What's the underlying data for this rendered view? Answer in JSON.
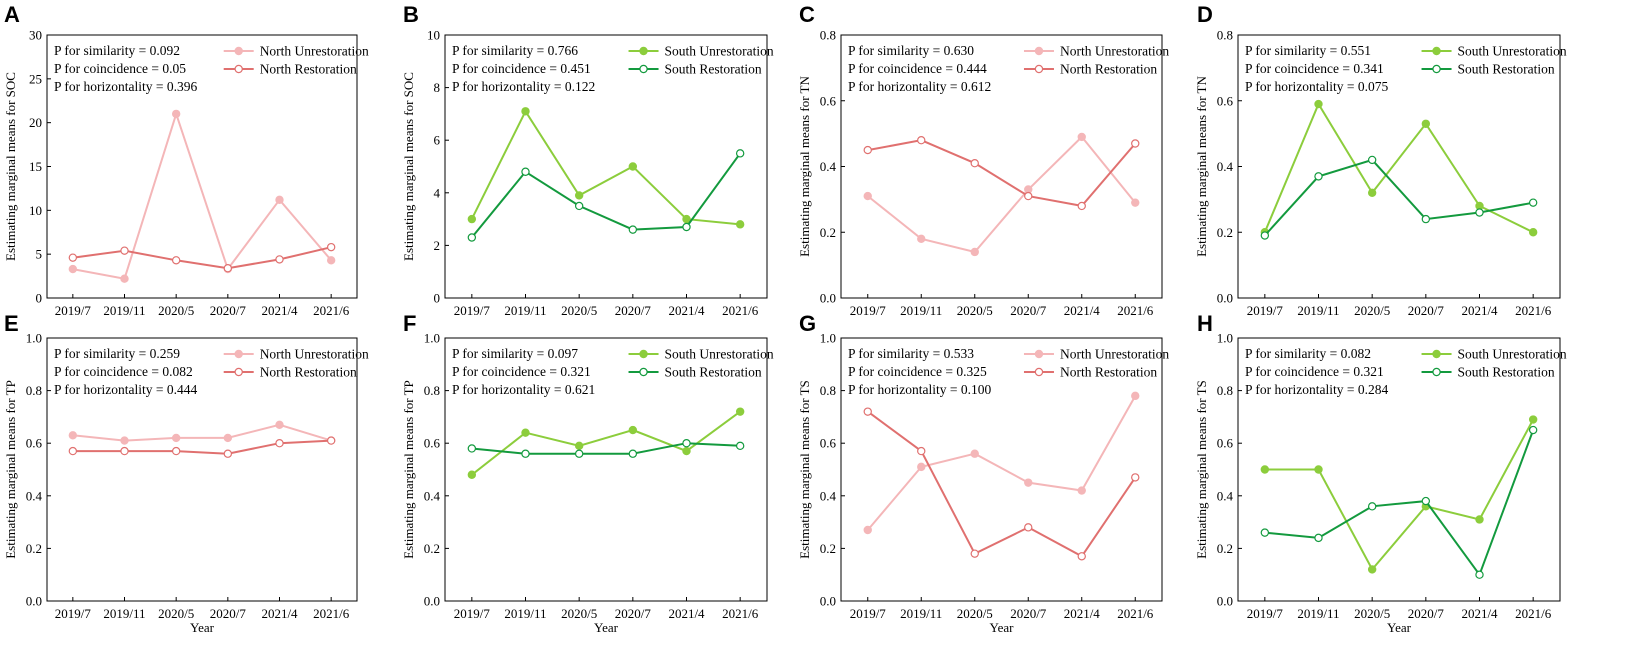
{
  "colors": {
    "north_unrestoration": "#f4b6b8",
    "north_restoration": "#e0706f",
    "south_unrestoration": "#8ccd3c",
    "south_restoration": "#139a3e"
  },
  "chart_data": [
    {
      "type": "line",
      "letter": "A",
      "categories": [
        "2019/7",
        "2019/11",
        "2020/5",
        "2020/7",
        "2021/4",
        "2021/6"
      ],
      "ylabel": "Estimating marginal means for SOC",
      "xlabel": "",
      "ylim": [
        0,
        30
      ],
      "yticks": [
        "0",
        "5",
        "10",
        "15",
        "20",
        "25",
        "30"
      ],
      "stats": [
        "P for similarity = 0.092",
        "P for coincidence = 0.05",
        "P for horizontality = 0.396"
      ],
      "series": [
        {
          "name": "North Unrestoration",
          "color": "#f4b6b8",
          "filled": true,
          "values": [
            3.3,
            2.2,
            21.0,
            3.3,
            11.2,
            4.3
          ]
        },
        {
          "name": "North Restoration",
          "color": "#e0706f",
          "filled": false,
          "values": [
            4.6,
            5.4,
            4.3,
            3.4,
            4.4,
            5.8
          ]
        }
      ]
    },
    {
      "type": "line",
      "letter": "B",
      "categories": [
        "2019/7",
        "2019/11",
        "2020/5",
        "2020/7",
        "2021/4",
        "2021/6"
      ],
      "ylabel": "Estimating marginal means for SOC",
      "xlabel": "",
      "ylim": [
        0,
        10
      ],
      "yticks": [
        "0",
        "2",
        "4",
        "6",
        "8",
        "10"
      ],
      "stats": [
        "P for similarity = 0.766",
        "P for coincidence = 0.451",
        "P for horizontality = 0.122"
      ],
      "series": [
        {
          "name": "South Unrestoration",
          "color": "#8ccd3c",
          "filled": true,
          "values": [
            3.0,
            7.1,
            3.9,
            5.0,
            3.0,
            2.8
          ]
        },
        {
          "name": "South Restoration",
          "color": "#139a3e",
          "filled": false,
          "values": [
            2.3,
            4.8,
            3.5,
            2.6,
            2.7,
            5.5
          ]
        }
      ]
    },
    {
      "type": "line",
      "letter": "C",
      "categories": [
        "2019/7",
        "2019/11",
        "2020/5",
        "2020/7",
        "2021/4",
        "2021/6"
      ],
      "ylabel": "Estimating marginal means for TN",
      "xlabel": "",
      "ylim": [
        0,
        0.8
      ],
      "yticks": [
        "0.0",
        "0.2",
        "0.4",
        "0.6",
        "0.8"
      ],
      "stats": [
        "P for similarity = 0.630",
        "P for coincidence = 0.444",
        "P for horizontality = 0.612"
      ],
      "series": [
        {
          "name": "North Unrestoration",
          "color": "#f4b6b8",
          "filled": true,
          "values": [
            0.31,
            0.18,
            0.14,
            0.33,
            0.49,
            0.29
          ]
        },
        {
          "name": "North Restoration",
          "color": "#e0706f",
          "filled": false,
          "values": [
            0.45,
            0.48,
            0.41,
            0.31,
            0.28,
            0.47
          ]
        }
      ]
    },
    {
      "type": "line",
      "letter": "D",
      "categories": [
        "2019/7",
        "2019/11",
        "2020/5",
        "2020/7",
        "2021/4",
        "2021/6"
      ],
      "ylabel": "Estimating marginal means for TN",
      "xlabel": "",
      "ylim": [
        0,
        0.8
      ],
      "yticks": [
        "0.0",
        "0.2",
        "0.4",
        "0.6",
        "0.8"
      ],
      "stats": [
        "P for similarity = 0.551",
        "P for coincidence = 0.341",
        "P for horizontality = 0.075"
      ],
      "series": [
        {
          "name": "South Unrestoration",
          "color": "#8ccd3c",
          "filled": true,
          "values": [
            0.2,
            0.59,
            0.32,
            0.53,
            0.28,
            0.2
          ]
        },
        {
          "name": "South Restoration",
          "color": "#139a3e",
          "filled": false,
          "values": [
            0.19,
            0.37,
            0.42,
            0.24,
            0.26,
            0.29
          ]
        }
      ]
    },
    {
      "type": "line",
      "letter": "E",
      "categories": [
        "2019/7",
        "2019/11",
        "2020/5",
        "2020/7",
        "2021/4",
        "2021/6"
      ],
      "ylabel": "Estimating marginal means for TP",
      "xlabel": "Year",
      "ylim": [
        0,
        1.0
      ],
      "yticks": [
        "0.0",
        "0.2",
        "0.4",
        "0.6",
        "0.8",
        "1.0"
      ],
      "stats": [
        "P for similarity = 0.259",
        "P for coincidence = 0.082",
        "P for horizontality = 0.444"
      ],
      "series": [
        {
          "name": "North Unrestoration",
          "color": "#f4b6b8",
          "filled": true,
          "values": [
            0.63,
            0.61,
            0.62,
            0.62,
            0.67,
            0.61
          ]
        },
        {
          "name": "North Restoration",
          "color": "#e0706f",
          "filled": false,
          "values": [
            0.57,
            0.57,
            0.57,
            0.56,
            0.6,
            0.61
          ]
        }
      ]
    },
    {
      "type": "line",
      "letter": "F",
      "categories": [
        "2019/7",
        "2019/11",
        "2020/5",
        "2020/7",
        "2021/4",
        "2021/6"
      ],
      "ylabel": "Estimating marginal means for TP",
      "xlabel": "Year",
      "ylim": [
        0,
        1.0
      ],
      "yticks": [
        "0.0",
        "0.2",
        "0.4",
        "0.6",
        "0.8",
        "1.0"
      ],
      "stats": [
        "P for similarity = 0.097",
        "P for coincidence = 0.321",
        "P for horizontality = 0.621"
      ],
      "series": [
        {
          "name": "South Unrestoration",
          "color": "#8ccd3c",
          "filled": true,
          "values": [
            0.48,
            0.64,
            0.59,
            0.65,
            0.57,
            0.72
          ]
        },
        {
          "name": "South Restoration",
          "color": "#139a3e",
          "filled": false,
          "values": [
            0.58,
            0.56,
            0.56,
            0.56,
            0.6,
            0.59
          ]
        }
      ]
    },
    {
      "type": "line",
      "letter": "G",
      "categories": [
        "2019/7",
        "2019/11",
        "2020/5",
        "2020/7",
        "2021/4",
        "2021/6"
      ],
      "ylabel": "Estimating marginal means for TS",
      "xlabel": "Year",
      "ylim": [
        0,
        1.0
      ],
      "yticks": [
        "0.0",
        "0.2",
        "0.4",
        "0.6",
        "0.8",
        "1.0"
      ],
      "stats": [
        "P for similarity = 0.533",
        "P for coincidence = 0.325",
        "P for horizontality = 0.100"
      ],
      "series": [
        {
          "name": "North Unrestoration",
          "color": "#f4b6b8",
          "filled": true,
          "values": [
            0.27,
            0.51,
            0.56,
            0.45,
            0.42,
            0.78
          ]
        },
        {
          "name": "North Restoration",
          "color": "#e0706f",
          "filled": false,
          "values": [
            0.72,
            0.57,
            0.18,
            0.28,
            0.17,
            0.47
          ]
        }
      ]
    },
    {
      "type": "line",
      "letter": "H",
      "categories": [
        "2019/7",
        "2019/11",
        "2020/5",
        "2020/7",
        "2021/4",
        "2021/6"
      ],
      "ylabel": "Estimating marginal means for TS",
      "xlabel": "Year",
      "ylim": [
        0,
        1.0
      ],
      "yticks": [
        "0.0",
        "0.2",
        "0.4",
        "0.6",
        "0.8",
        "1.0"
      ],
      "stats": [
        "P for similarity = 0.082",
        "P for coincidence = 0.321",
        "P for horizontality = 0.284"
      ],
      "series": [
        {
          "name": "South Unrestoration",
          "color": "#8ccd3c",
          "filled": true,
          "values": [
            0.5,
            0.5,
            0.12,
            0.36,
            0.31,
            0.69
          ]
        },
        {
          "name": "South Restoration",
          "color": "#139a3e",
          "filled": false,
          "values": [
            0.26,
            0.24,
            0.36,
            0.38,
            0.1,
            0.65
          ]
        }
      ]
    }
  ]
}
